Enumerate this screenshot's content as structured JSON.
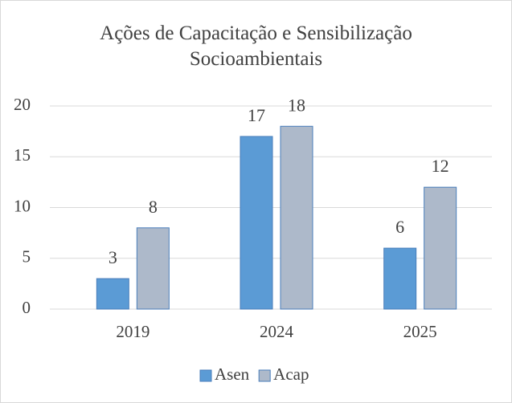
{
  "chart_data": {
    "type": "bar",
    "title": "Ações de Capacitação e Sensibilização Socioambientais",
    "categories": [
      "2019",
      "2024",
      "2025"
    ],
    "series": [
      {
        "name": "Asen",
        "color": "#5b9bd5",
        "values": [
          3,
          17,
          6
        ]
      },
      {
        "name": "Acap",
        "color": "#adb9ca",
        "values": [
          8,
          18,
          12
        ]
      }
    ],
    "ylim": [
      0,
      20
    ],
    "yticks": [
      0,
      5,
      10,
      15,
      20
    ],
    "grid": true,
    "legend": "bottom"
  }
}
